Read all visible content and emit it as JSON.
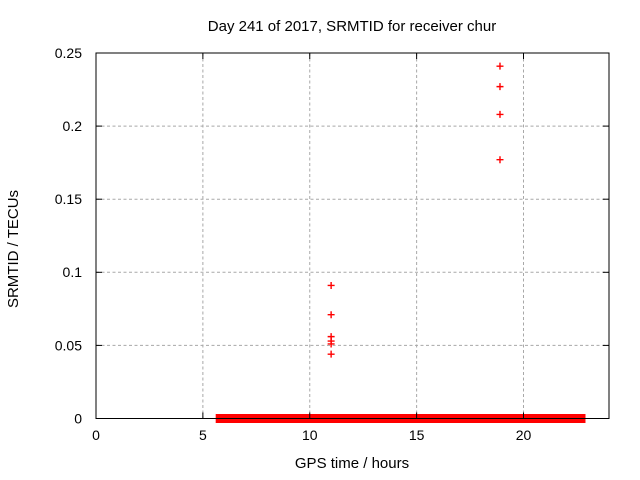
{
  "chart_data": {
    "type": "scatter",
    "title": "Day 241 of 2017, SRMTID for receiver chur",
    "xlabel": "GPS time / hours",
    "ylabel": "SRMTID / TECUs",
    "xlim": [
      0,
      24
    ],
    "ylim": [
      0,
      0.25
    ],
    "xticks": [
      0,
      5,
      10,
      15,
      20
    ],
    "xtick_labels": [
      "0",
      "5",
      "10",
      "15",
      "20"
    ],
    "yticks": [
      0,
      0.05,
      0.1,
      0.15,
      0.2,
      0.25
    ],
    "ytick_labels": [
      "0",
      "0.05",
      "0.1",
      "0.15",
      "0.2",
      "0.25"
    ],
    "grid": true,
    "legend": "none",
    "marker": "plus",
    "marker_size": 7,
    "colors": {
      "marker": "#ff0000",
      "grid": "#a8a8a8",
      "axis": "#000000",
      "background": "#ffffff"
    },
    "series": [
      {
        "name": "SRMTID",
        "points": [
          [
            11.0,
            0.091
          ],
          [
            11.0,
            0.071
          ],
          [
            11.0,
            0.056
          ],
          [
            11.0,
            0.053
          ],
          [
            11.0,
            0.051
          ],
          [
            11.0,
            0.044
          ],
          [
            18.9,
            0.241
          ],
          [
            18.9,
            0.227
          ],
          [
            18.9,
            0.208
          ],
          [
            18.9,
            0.177
          ]
        ]
      }
    ],
    "zero_value_run": {
      "y": 0,
      "x_start": 5.6,
      "x_end": 22.9,
      "description": "dense run of overlapping + markers at SRMTID = 0 forming a thick red band along the x-axis"
    }
  }
}
